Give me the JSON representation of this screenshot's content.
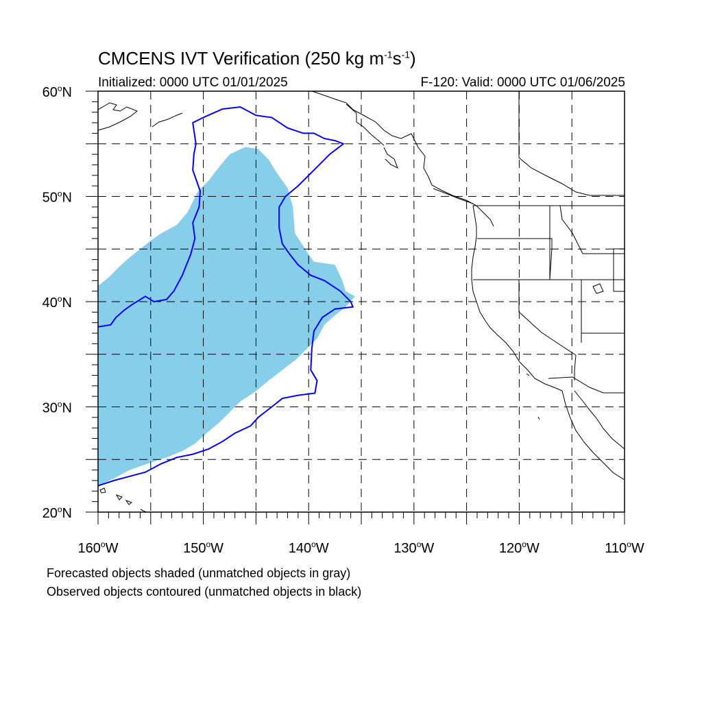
{
  "title": {
    "main": "CMCENS IVT Verification (250 kg m",
    "sup1": "-1",
    "mid": "s",
    "sup2": "-1",
    "close": ")"
  },
  "subtitle": {
    "initialized": "Initialized: 0000 UTC 01/01/2025",
    "valid": "F-120: Valid: 0000 UTC 01/06/2025"
  },
  "notes": [
    "Forecasted objects shaded (unmatched objects in gray)",
    "Observed objects contoured (unmatched objects in black)"
  ],
  "map": {
    "lon_range": [
      -160,
      -110
    ],
    "lat_range": [
      20,
      60
    ],
    "grid": true,
    "lat_labels": [
      "20",
      "30",
      "40",
      "50",
      "60"
    ],
    "lat_suffix": "N",
    "lon_labels": [
      "160",
      "150",
      "140",
      "130",
      "120",
      "110"
    ],
    "lon_suffix": "W",
    "forecast_fill": "#87ceeb",
    "observed_contour": "#0000ff",
    "coast_color": "#000000",
    "forecast_object": [
      [
        -160,
        41.5
      ],
      [
        -159,
        42.3
      ],
      [
        -158,
        43.3
      ],
      [
        -157,
        44.2
      ],
      [
        -156,
        45.0
      ],
      [
        -155,
        45.8
      ],
      [
        -154,
        46.5
      ],
      [
        -152.5,
        47.3
      ],
      [
        -151.5,
        48.5
      ],
      [
        -150.5,
        50.5
      ],
      [
        -149.5,
        51.5
      ],
      [
        -148.5,
        52.8
      ],
      [
        -147.5,
        54.0
      ],
      [
        -146,
        54.7
      ],
      [
        -144.8,
        54.5
      ],
      [
        -143.8,
        53.5
      ],
      [
        -143,
        52.2
      ],
      [
        -142,
        50.8
      ],
      [
        -141.5,
        49.0
      ],
      [
        -141.3,
        46.5
      ],
      [
        -140,
        44.5
      ],
      [
        -139.5,
        43.8
      ],
      [
        -137.5,
        43.5
      ],
      [
        -136.8,
        42.0
      ],
      [
        -136.5,
        41.0
      ],
      [
        -135.6,
        40.5
      ],
      [
        -136.5,
        39.5
      ],
      [
        -137.5,
        38.7
      ],
      [
        -138.5,
        37.8
      ],
      [
        -139.2,
        36.5
      ],
      [
        -140.2,
        35.5
      ],
      [
        -141.2,
        34.5
      ],
      [
        -142.5,
        33.5
      ],
      [
        -143.8,
        32.5
      ],
      [
        -145.0,
        31.5
      ],
      [
        -146.5,
        30.5
      ],
      [
        -147.5,
        29.5
      ],
      [
        -148.5,
        28.5
      ],
      [
        -149.7,
        27.5
      ],
      [
        -150.8,
        26.5
      ],
      [
        -152.0,
        25.8
      ],
      [
        -153.5,
        25.2
      ],
      [
        -155.0,
        24.7
      ],
      [
        -157.0,
        24.0
      ],
      [
        -158.5,
        23.2
      ],
      [
        -160,
        22.5
      ]
    ],
    "observed_object": [
      [
        -160,
        37.6
      ],
      [
        -158.8,
        37.8
      ],
      [
        -158.3,
        38.5
      ],
      [
        -157.5,
        39.2
      ],
      [
        -156.8,
        39.7
      ],
      [
        -155.5,
        40.5
      ],
      [
        -154.7,
        40.0
      ],
      [
        -153.5,
        40.2
      ],
      [
        -152.8,
        41.0
      ],
      [
        -152.0,
        42.5
      ],
      [
        -151.2,
        44.5
      ],
      [
        -150.8,
        46.0
      ],
      [
        -151.0,
        47.5
      ],
      [
        -150.4,
        49.0
      ],
      [
        -150.3,
        50.5
      ],
      [
        -151.0,
        52.5
      ],
      [
        -150.9,
        54.0
      ],
      [
        -150.7,
        55.0
      ],
      [
        -151.0,
        57.0
      ],
      [
        -150.0,
        57.5
      ],
      [
        -148.2,
        58.3
      ],
      [
        -146.5,
        58.5
      ],
      [
        -145.0,
        57.7
      ],
      [
        -143.5,
        57.5
      ],
      [
        -142.0,
        56.5
      ],
      [
        -140.5,
        56.0
      ],
      [
        -139.5,
        56.0
      ],
      [
        -138.5,
        55.5
      ],
      [
        -137.5,
        55.3
      ],
      [
        -136.7,
        55.0
      ],
      [
        -138.0,
        54.0
      ],
      [
        -139.0,
        53.0
      ],
      [
        -140.2,
        51.8
      ],
      [
        -141.0,
        51.0
      ],
      [
        -142.2,
        50.0
      ],
      [
        -142.8,
        49.0
      ],
      [
        -142.8,
        47.0
      ],
      [
        -142.5,
        45.5
      ],
      [
        -141.8,
        44.5
      ],
      [
        -141.0,
        43.5
      ],
      [
        -139.8,
        42.5
      ],
      [
        -138.5,
        42.0
      ],
      [
        -137.0,
        41.0
      ],
      [
        -136.0,
        40.0
      ],
      [
        -135.8,
        39.5
      ],
      [
        -137.5,
        39.3
      ],
      [
        -138.7,
        38.5
      ],
      [
        -139.5,
        37.2
      ],
      [
        -139.7,
        35.5
      ],
      [
        -139.8,
        33.5
      ],
      [
        -139.2,
        32.5
      ],
      [
        -139.4,
        31.3
      ],
      [
        -141.0,
        31.1
      ],
      [
        -142.5,
        30.8
      ],
      [
        -143.5,
        30.0
      ],
      [
        -144.8,
        29.0
      ],
      [
        -145.5,
        28.2
      ],
      [
        -147.0,
        27.5
      ],
      [
        -148.2,
        26.7
      ],
      [
        -149.5,
        26.0
      ],
      [
        -151.0,
        25.5
      ],
      [
        -152.5,
        25.2
      ],
      [
        -154.0,
        24.6
      ],
      [
        -155.5,
        23.8
      ],
      [
        -157.0,
        23.4
      ],
      [
        -158.5,
        23.0
      ],
      [
        -160,
        22.5
      ]
    ]
  }
}
